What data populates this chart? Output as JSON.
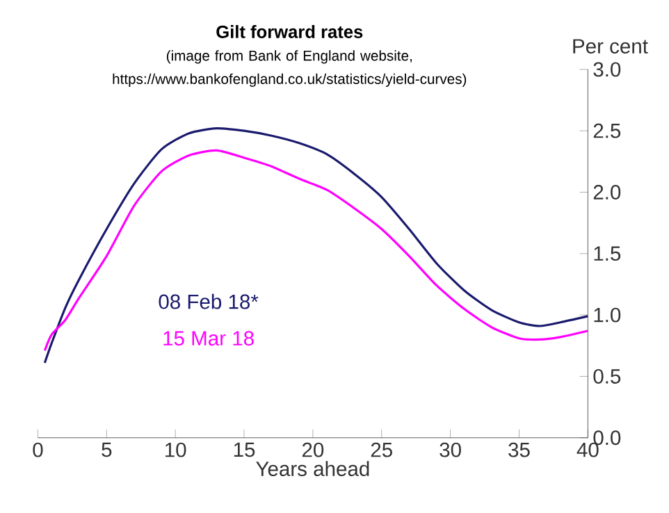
{
  "chart_data": {
    "type": "line",
    "title": "Gilt forward rates",
    "subtitle": "(image from Bank of England website, https://www.bankofengland.co.uk/statistics/yield-curves)",
    "xlabel": "Years ahead",
    "ylabel": "Per cent",
    "xlim": [
      0,
      40
    ],
    "xticks": [
      0,
      5,
      10,
      15,
      20,
      25,
      30,
      35,
      40
    ],
    "ylim": [
      0,
      3
    ],
    "yticks": [
      {
        "value": 0,
        "label": "0.0"
      },
      {
        "value": 0.5,
        "label": "0.5"
      },
      {
        "value": 1,
        "label": "1.0"
      },
      {
        "value": 1.5,
        "label": "1.5"
      },
      {
        "value": 2,
        "label": "2.0"
      },
      {
        "value": 2.5,
        "label": "2.5"
      },
      {
        "value": 3,
        "label": "3.0"
      }
    ],
    "x": [
      0.5,
      1,
      2,
      3,
      5,
      7,
      9,
      11,
      13,
      15,
      17,
      19,
      21,
      23,
      25,
      27,
      29,
      31,
      33,
      35,
      36.5,
      38,
      40
    ],
    "series": [
      {
        "name": "08 Feb 18*",
        "color": "#1a1a6e",
        "values": [
          0.61,
          0.77,
          1.06,
          1.29,
          1.7,
          2.07,
          2.35,
          2.48,
          2.52,
          2.5,
          2.46,
          2.4,
          2.31,
          2.15,
          1.96,
          1.7,
          1.42,
          1.2,
          1.04,
          0.94,
          0.91,
          0.94,
          0.99
        ]
      },
      {
        "name": "15 Mar 18",
        "color": "#ff00ff",
        "values": [
          0.71,
          0.84,
          0.96,
          1.14,
          1.48,
          1.89,
          2.17,
          2.3,
          2.34,
          2.28,
          2.21,
          2.11,
          2.02,
          1.87,
          1.7,
          1.48,
          1.24,
          1.05,
          0.9,
          0.81,
          0.8,
          0.82,
          0.87
        ]
      }
    ],
    "grid": false
  }
}
